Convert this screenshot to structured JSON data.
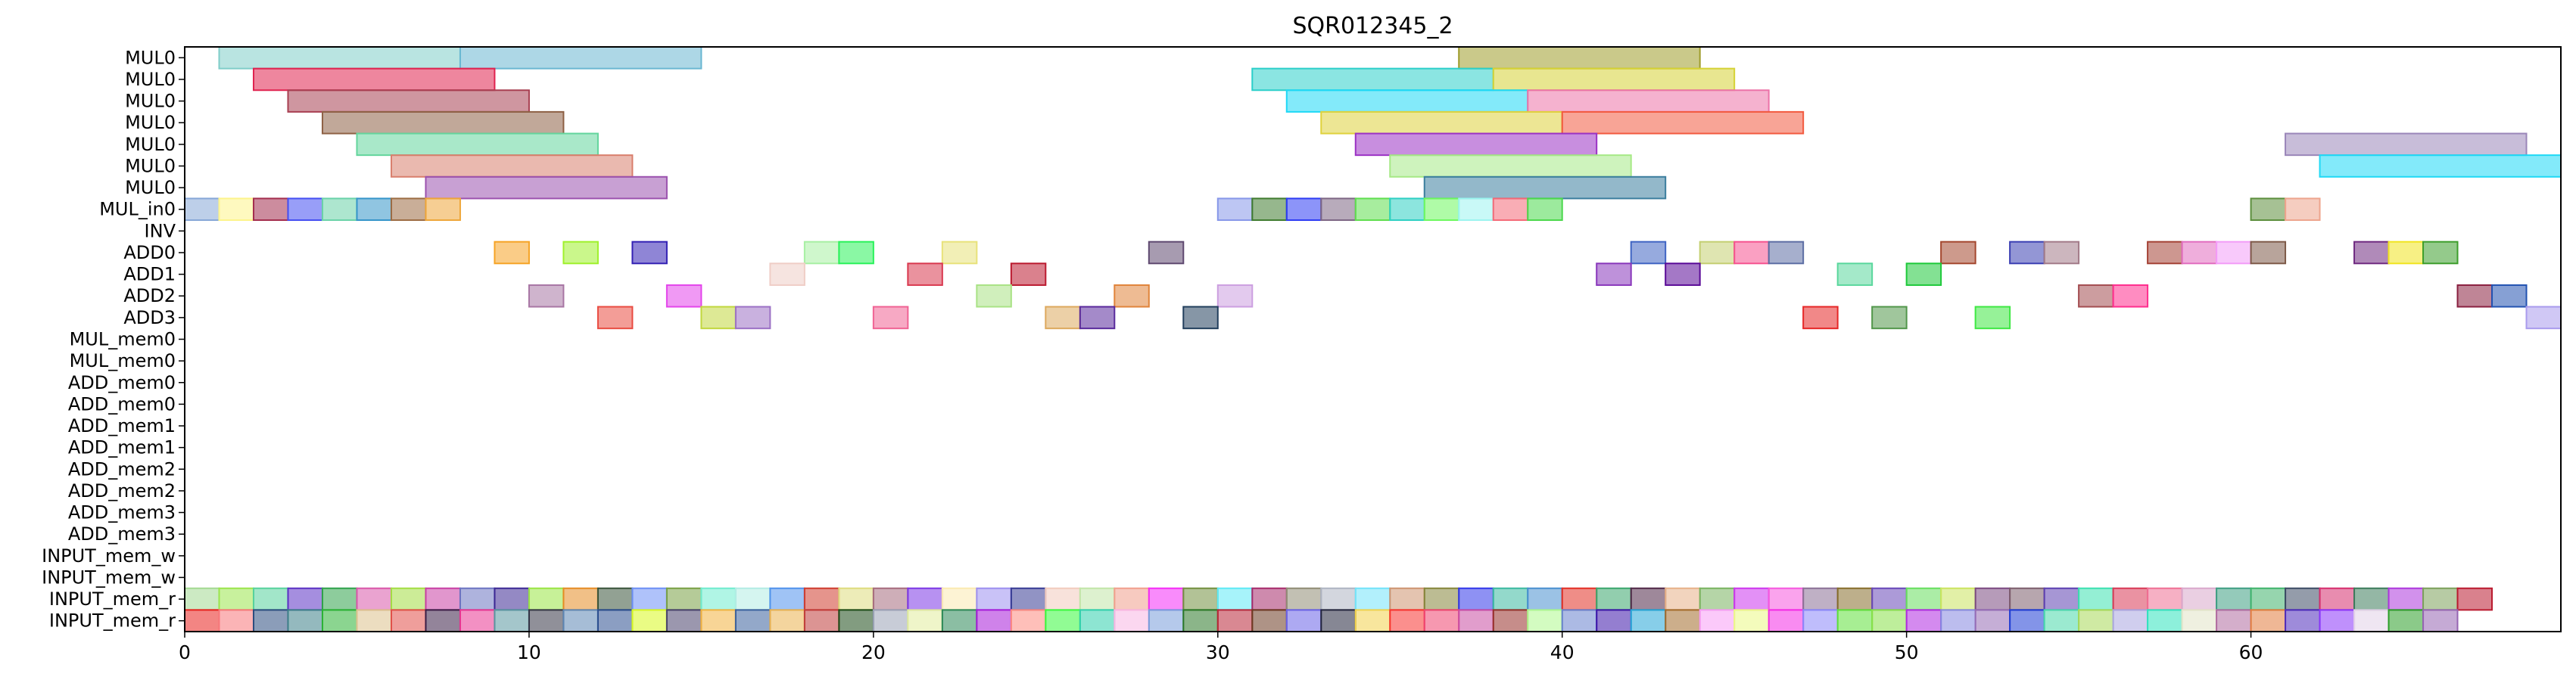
{
  "chart_data": {
    "type": "gantt",
    "title": "SQR012345_2",
    "xlabel": "",
    "ylabel": "",
    "xlim": [
      0,
      69
    ],
    "xticks": [
      0,
      10,
      20,
      30,
      40,
      50,
      60
    ],
    "grid": false,
    "legend": "none",
    "rows": [
      "MUL0",
      "MUL0",
      "MUL0",
      "MUL0",
      "MUL0",
      "MUL0",
      "MUL0",
      "MUL_in0",
      "INV",
      "ADD0",
      "ADD1",
      "ADD2",
      "ADD3",
      "MUL_mem0",
      "MUL_mem0",
      "ADD_mem0",
      "ADD_mem0",
      "ADD_mem1",
      "ADD_mem1",
      "ADD_mem2",
      "ADD_mem2",
      "ADD_mem3",
      "ADD_mem3",
      "INPUT_mem_w",
      "INPUT_mem_w",
      "INPUT_mem_r",
      "INPUT_mem_r"
    ],
    "tasks": [
      {
        "row": 0,
        "start": 1,
        "end": 8,
        "color": "#7fcdc9"
      },
      {
        "row": 0,
        "start": 8,
        "end": 15,
        "color": "#6ab7d2"
      },
      {
        "row": 0,
        "start": 37,
        "end": 44,
        "color": "#9e9c2a"
      },
      {
        "row": 1,
        "start": 2,
        "end": 9,
        "color": "#e0224f"
      },
      {
        "row": 1,
        "start": 31,
        "end": 38,
        "color": "#2bcfca"
      },
      {
        "row": 1,
        "start": 38,
        "end": 45,
        "color": "#d5d235"
      },
      {
        "row": 2,
        "start": 3,
        "end": 10,
        "color": "#a84052"
      },
      {
        "row": 2,
        "start": 32,
        "end": 39,
        "color": "#1ed8f6"
      },
      {
        "row": 2,
        "start": 39,
        "end": 46,
        "color": "#ec73a8"
      },
      {
        "row": 3,
        "start": 4,
        "end": 11,
        "color": "#8e6145"
      },
      {
        "row": 3,
        "start": 33,
        "end": 40,
        "color": "#dfd23c"
      },
      {
        "row": 3,
        "start": 40,
        "end": 47,
        "color": "#f25a3f"
      },
      {
        "row": 4,
        "start": 5,
        "end": 12,
        "color": "#63d59c"
      },
      {
        "row": 4,
        "start": 34,
        "end": 41,
        "color": "#9b32c4"
      },
      {
        "row": 4,
        "start": 61,
        "end": 68,
        "color": "#9a86b9"
      },
      {
        "row": 5,
        "start": 6,
        "end": 13,
        "color": "#d97f6d"
      },
      {
        "row": 5,
        "start": 35,
        "end": 42,
        "color": "#a6e986"
      },
      {
        "row": 5,
        "start": 62,
        "end": 69,
        "color": "#1ed9f6"
      },
      {
        "row": 6,
        "start": 7,
        "end": 14,
        "color": "#9b52ae"
      },
      {
        "row": 6,
        "start": 36,
        "end": 43,
        "color": "#3b7e9e"
      },
      {
        "row": 7,
        "start": 0,
        "end": 1,
        "color": "#86a7d7"
      },
      {
        "row": 7,
        "start": 1,
        "end": 2,
        "color": "#fdf48b"
      },
      {
        "row": 7,
        "start": 2,
        "end": 3,
        "color": "#a32d4e"
      },
      {
        "row": 7,
        "start": 3,
        "end": 4,
        "color": "#444ff2"
      },
      {
        "row": 7,
        "start": 4,
        "end": 5,
        "color": "#6ad2a8"
      },
      {
        "row": 7,
        "start": 5,
        "end": 6,
        "color": "#3595c9"
      },
      {
        "row": 7,
        "start": 6,
        "end": 7,
        "color": "#9c6c43"
      },
      {
        "row": 7,
        "start": 7,
        "end": 8,
        "color": "#eea63a"
      },
      {
        "row": 7,
        "start": 30,
        "end": 31,
        "color": "#8797e9"
      },
      {
        "row": 7,
        "start": 31,
        "end": 32,
        "color": "#3f7b2f"
      },
      {
        "row": 7,
        "start": 32,
        "end": 33,
        "color": "#2d3cf4"
      },
      {
        "row": 7,
        "start": 33,
        "end": 34,
        "color": "#7d6684"
      },
      {
        "row": 7,
        "start": 34,
        "end": 35,
        "color": "#5fde4f"
      },
      {
        "row": 7,
        "start": 35,
        "end": 36,
        "color": "#2ed0c3"
      },
      {
        "row": 7,
        "start": 36,
        "end": 37,
        "color": "#6ef85f"
      },
      {
        "row": 7,
        "start": 37,
        "end": 38,
        "color": "#9cf4f0"
      },
      {
        "row": 7,
        "start": 38,
        "end": 39,
        "color": "#f46a78"
      },
      {
        "row": 7,
        "start": 39,
        "end": 40,
        "color": "#4bd84c"
      },
      {
        "row": 7,
        "start": 60,
        "end": 61,
        "color": "#5c8e3d"
      },
      {
        "row": 7,
        "start": 61,
        "end": 62,
        "color": "#eda48d"
      },
      {
        "row": 9,
        "start": 9,
        "end": 10,
        "color": "#f6a325"
      },
      {
        "row": 9,
        "start": 11,
        "end": 12,
        "color": "#9ff12b"
      },
      {
        "row": 9,
        "start": 13,
        "end": 14,
        "color": "#3321b4"
      },
      {
        "row": 9,
        "start": 18,
        "end": 19,
        "color": "#a7f0a3"
      },
      {
        "row": 9,
        "start": 19,
        "end": 20,
        "color": "#29f25a"
      },
      {
        "row": 9,
        "start": 22,
        "end": 23,
        "color": "#e8e27a"
      },
      {
        "row": 9,
        "start": 28,
        "end": 29,
        "color": "#5f4970"
      },
      {
        "row": 9,
        "start": 42,
        "end": 43,
        "color": "#3f64c3"
      },
      {
        "row": 9,
        "start": 44,
        "end": 45,
        "color": "#c4cf71"
      },
      {
        "row": 9,
        "start": 45,
        "end": 46,
        "color": "#f6528f"
      },
      {
        "row": 9,
        "start": 46,
        "end": 47,
        "color": "#5d6ea4"
      },
      {
        "row": 9,
        "start": 51,
        "end": 52,
        "color": "#a4472e"
      },
      {
        "row": 9,
        "start": 53,
        "end": 54,
        "color": "#3b3fb3"
      },
      {
        "row": 9,
        "start": 54,
        "end": 55,
        "color": "#a27a88"
      },
      {
        "row": 9,
        "start": 57,
        "end": 58,
        "color": "#a44235"
      },
      {
        "row": 9,
        "start": 58,
        "end": 59,
        "color": "#e16cc0"
      },
      {
        "row": 9,
        "start": 59,
        "end": 60,
        "color": "#f39cf8"
      },
      {
        "row": 9,
        "start": 60,
        "end": 61,
        "color": "#7e5a48"
      },
      {
        "row": 9,
        "start": 63,
        "end": 64,
        "color": "#6f2a80"
      },
      {
        "row": 9,
        "start": 64,
        "end": 65,
        "color": "#f1e41f"
      },
      {
        "row": 9,
        "start": 65,
        "end": 66,
        "color": "#3d9e2b"
      },
      {
        "row": 10,
        "start": 17,
        "end": 18,
        "color": "#efcdc6"
      },
      {
        "row": 10,
        "start": 21,
        "end": 22,
        "color": "#d9394f"
      },
      {
        "row": 10,
        "start": 24,
        "end": 25,
        "color": "#bb1a2f"
      },
      {
        "row": 10,
        "start": 41,
        "end": 42,
        "color": "#8937bb"
      },
      {
        "row": 10,
        "start": 43,
        "end": 44,
        "color": "#5a0a97"
      },
      {
        "row": 10,
        "start": 48,
        "end": 49,
        "color": "#5ad79d"
      },
      {
        "row": 10,
        "start": 50,
        "end": 51,
        "color": "#1ec93a"
      },
      {
        "row": 11,
        "start": 10,
        "end": 11,
        "color": "#a876a4"
      },
      {
        "row": 11,
        "start": 14,
        "end": 15,
        "color": "#e346eb"
      },
      {
        "row": 11,
        "start": 23,
        "end": 24,
        "color": "#a9e285"
      },
      {
        "row": 11,
        "start": 27,
        "end": 28,
        "color": "#e0843b"
      },
      {
        "row": 11,
        "start": 30,
        "end": 31,
        "color": "#cc9fe0"
      },
      {
        "row": 11,
        "start": 55,
        "end": 56,
        "color": "#a34d50"
      },
      {
        "row": 11,
        "start": 56,
        "end": 57,
        "color": "#ff2e8e"
      },
      {
        "row": 11,
        "start": 66,
        "end": 67,
        "color": "#8a2040"
      },
      {
        "row": 11,
        "start": 67,
        "end": 68,
        "color": "#2252b1"
      },
      {
        "row": 12,
        "start": 12,
        "end": 13,
        "color": "#e94c42"
      },
      {
        "row": 12,
        "start": 15,
        "end": 16,
        "color": "#c1d73e"
      },
      {
        "row": 12,
        "start": 16,
        "end": 17,
        "color": "#9c71c5"
      },
      {
        "row": 12,
        "start": 20,
        "end": 21,
        "color": "#f06394"
      },
      {
        "row": 12,
        "start": 25,
        "end": 26,
        "color": "#dda95e"
      },
      {
        "row": 12,
        "start": 26,
        "end": 27,
        "color": "#5a2a9c"
      },
      {
        "row": 12,
        "start": 29,
        "end": 30,
        "color": "#223f5d"
      },
      {
        "row": 12,
        "start": 47,
        "end": 48,
        "color": "#e62727"
      },
      {
        "row": 12,
        "start": 49,
        "end": 50,
        "color": "#52974b"
      },
      {
        "row": 12,
        "start": 52,
        "end": 53,
        "color": "#3fe844"
      },
      {
        "row": 12,
        "start": 68,
        "end": 69,
        "color": "#a99bed"
      }
    ],
    "mem_r_colors": [
      [
        "#a3d992",
        "#9be54c",
        "#56d29d",
        "#5b31c4",
        "#2fa24a",
        "#d957a9",
        "#a3dd42",
        "#c83fa4",
        "#6c74c1",
        "#3c2894",
        "#99e544",
        "#e68c25",
        "#38533a",
        "#6d8ff5",
        "#78a044",
        "#6feccf",
        "#b2ece4",
        "#5092ec",
        "#cf3c2e",
        "#dedc7e",
        "#a66b7d",
        "#7c37e5",
        "#fbeab0",
        "#9c8ff0",
        "#363a93",
        "#f2cbbd",
        "#c1e6a8",
        "#f19f8d",
        "#f42cf7",
        "#73903f",
        "#5ee9f6",
        "#a52a6a",
        "#8f8c75",
        "#aeb4c2",
        "#72e3f9",
        "#cd9370",
        "#85853a",
        "#3136e9",
        "#3ab9a0",
        "#498fd0",
        "#e22f25",
        "#39a66c",
        "#4f2747",
        "#e7b189",
        "#78b35f",
        "#cc35ee",
        "#f658df",
        "#8b7095",
        "#866d2b",
        "#6747b8",
        "#66de5d",
        "#cbe45f",
        "#7a4880",
        "#7c5d6c",
        "#5c3fb0",
        "#3ce1b0",
        "#d83855",
        "#ef6f94",
        "#d9a8cb",
        "#3d9e82",
        "#3fb36b",
        "#3c4a64",
        "#d62d6d",
        "#3c7b5b",
        "#ad37dc",
        "#7ba05a",
        "#ba1a2f"
      ],
      [
        "#e9201e",
        "#f7777a",
        "#2c4c7f",
        "#3d7f89",
        "#2cb235",
        "#dcc18d",
        "#e14f49",
        "#3b1f47",
        "#e93591",
        "#5a97a0",
        "#343446",
        "#5d86b4",
        "#2b4e8f",
        "#d9f91f",
        "#48416c",
        "#f2b33f",
        "#3a609d",
        "#ebb24f",
        "#c03d3b",
        "#1b4a17",
        "#9aa2b6",
        "#e1ed9d",
        "#2b8857",
        "#a71bd9",
        "#fd8a7f",
        "#36fa3d",
        "#30cfad",
        "#f8b6e3",
        "#799cdb",
        "#2b7928",
        "#ba2739",
        "#6c3a23",
        "#6a62e8",
        "#22243c",
        "#f2d24c",
        "#f8332f",
        "#ef4470",
        "#c94da3",
        "#97302a",
        "#aef98e",
        "#6781cd",
        "#3d14a9",
        "#25a6d7",
        "#a26b2c",
        "#f89cf6",
        "#ebfa85",
        "#f42ce6",
        "#8a87fa",
        "#5ee03b",
        "#88e049",
        "#b12ae2",
        "#8586e0",
        "#956cb5",
        "#1e3dd5",
        "#48d9aa",
        "#a8d857",
        "#a9a6e0",
        "#2fe4be",
        "#e2e4c7",
        "#b06ba0",
        "#e17c3e",
        "#4f2cbb",
        "#8a35fa",
        "#e2d1e7",
        "#2c9e28",
        "#9664b2"
      ]
    ]
  }
}
